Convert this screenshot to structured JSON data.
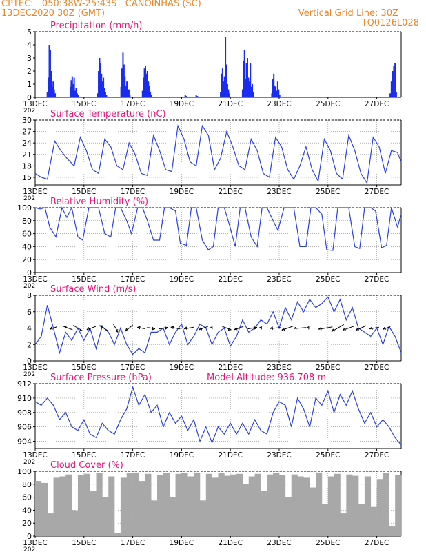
{
  "header": {
    "location": "CPTEC:   050:38W-25:43S   CANOINHAS (SC)",
    "run": "13DEC2020 30Z (GMT)",
    "grid_note": "Vertical Grid Line: 30Z",
    "model_id": "TQ0126L028"
  },
  "colors": {
    "header": "#e8872a",
    "title": "#e0177f",
    "line": "#2a3fe0",
    "bar": "#1a2cf0",
    "cloud": "#a8a8a8",
    "arrow": "#000000"
  },
  "x_axis": {
    "tick_labels": [
      "13DEC",
      "15DEC",
      "17DEC",
      "19DEC",
      "21DEC",
      "23DEC",
      "25DEC",
      "27DEC"
    ],
    "tick_days": [
      0,
      2,
      4,
      6,
      8,
      10,
      12,
      14
    ],
    "year_stub": "202",
    "range_days": [
      0,
      15
    ]
  },
  "chart_data": [
    {
      "type": "bar",
      "title": "Precipitation (mm/h)",
      "ylim": [
        0,
        5
      ],
      "yticks": [
        0,
        1,
        2,
        3,
        4,
        5
      ],
      "x_days": [
        0.5,
        0.54,
        0.58,
        0.62,
        0.66,
        0.7,
        0.74,
        0.78,
        0.82,
        1.44,
        1.48,
        1.52,
        1.56,
        1.6,
        1.64,
        1.68,
        1.72,
        1.76,
        2.56,
        2.6,
        2.64,
        2.68,
        2.72,
        2.76,
        2.8,
        2.84,
        2.88,
        2.92,
        3.52,
        3.56,
        3.6,
        3.64,
        3.68,
        3.72,
        3.76,
        3.8,
        3.84,
        3.88,
        4.4,
        4.44,
        4.48,
        4.52,
        4.56,
        4.6,
        4.64,
        4.68,
        4.72,
        4.76,
        6.15,
        6.19,
        6.6,
        6.65,
        7.6,
        7.64,
        7.68,
        7.72,
        7.76,
        7.8,
        7.84,
        7.88,
        7.92,
        7.96,
        8.5,
        8.54,
        8.58,
        8.62,
        8.66,
        8.7,
        8.74,
        8.78,
        8.82,
        8.86,
        8.9,
        8.94,
        9.7,
        9.74,
        9.78,
        9.82,
        9.86,
        9.9,
        9.94,
        9.98,
        10.02,
        14.55,
        14.6,
        14.65,
        14.7,
        14.75,
        14.8
      ],
      "values": [
        0.4,
        1.5,
        4.0,
        3.6,
        2.0,
        0.8,
        1.2,
        0.6,
        0.3,
        0.8,
        1.3,
        1.6,
        1.0,
        1.5,
        0.5,
        0.7,
        0.3,
        0.2,
        0.3,
        2.0,
        3.0,
        2.6,
        1.8,
        1.2,
        1.5,
        0.7,
        0.4,
        0.2,
        0.8,
        2.2,
        3.4,
        2.5,
        1.6,
        0.9,
        1.2,
        0.4,
        0.6,
        0.2,
        0.5,
        1.5,
        2.2,
        2.4,
        1.8,
        2.0,
        1.2,
        0.9,
        0.4,
        0.2,
        0.2,
        0.1,
        0.2,
        0.1,
        0.4,
        1.8,
        2.2,
        1.2,
        1.6,
        4.6,
        2.5,
        1.0,
        0.6,
        0.3,
        0.6,
        2.8,
        3.6,
        1.4,
        2.6,
        3.0,
        1.5,
        1.2,
        2.6,
        0.8,
        1.0,
        0.4,
        0.3,
        1.4,
        1.8,
        0.9,
        0.8,
        0.5,
        1.2,
        0.6,
        0.2,
        0.3,
        1.2,
        2.0,
        2.4,
        2.6,
        0.4
      ]
    },
    {
      "type": "line",
      "title": "Surface Temperature (nC)",
      "ylim": [
        13,
        30
      ],
      "yticks": [
        15,
        18,
        21,
        24,
        27,
        30
      ],
      "grid": true,
      "x_days": [
        0,
        0.25,
        0.5,
        0.8,
        1.05,
        1.3,
        1.6,
        1.85,
        2.1,
        2.35,
        2.6,
        2.85,
        3.1,
        3.35,
        3.6,
        3.85,
        4.1,
        4.35,
        4.6,
        4.85,
        5.1,
        5.35,
        5.6,
        5.85,
        6.1,
        6.35,
        6.6,
        6.85,
        7.1,
        7.35,
        7.6,
        7.85,
        8.1,
        8.35,
        8.6,
        8.85,
        9.1,
        9.35,
        9.6,
        9.85,
        10.1,
        10.35,
        10.6,
        10.85,
        11.1,
        11.35,
        11.6,
        11.85,
        12.1,
        12.35,
        12.6,
        12.85,
        13.1,
        13.35,
        13.6,
        13.85,
        14.1,
        14.35,
        14.6,
        14.85,
        15.0
      ],
      "values": [
        16,
        15,
        14.5,
        24.5,
        22,
        20,
        18,
        25.5,
        22,
        17,
        16,
        25,
        23,
        18,
        17,
        24,
        21,
        16,
        15.5,
        26,
        22,
        17,
        16.5,
        28.5,
        25,
        19,
        18,
        28.5,
        26,
        17,
        20,
        27,
        23,
        18,
        17,
        25,
        22,
        16,
        15,
        25.5,
        23,
        17,
        14.5,
        18,
        23,
        17,
        14,
        25,
        22,
        16,
        14.5,
        26,
        22,
        16,
        13.5,
        25.5,
        23,
        16,
        22,
        21.5,
        19
      ]
    },
    {
      "type": "line",
      "title": "Relative Humidity (%)",
      "ylim": [
        0,
        100
      ],
      "yticks": [
        0,
        20,
        40,
        60,
        80,
        100
      ],
      "grid": true,
      "x_days": [
        0,
        0.2,
        0.4,
        0.6,
        0.85,
        1.1,
        1.3,
        1.5,
        1.75,
        1.95,
        2.2,
        2.4,
        2.6,
        2.85,
        3.1,
        3.3,
        3.5,
        3.75,
        3.95,
        4.2,
        4.4,
        4.6,
        4.85,
        5.1,
        5.3,
        5.5,
        5.75,
        5.95,
        6.2,
        6.4,
        6.6,
        6.85,
        7.1,
        7.3,
        7.5,
        7.75,
        7.95,
        8.2,
        8.4,
        8.6,
        8.85,
        9.1,
        9.3,
        9.5,
        9.75,
        9.95,
        10.2,
        10.4,
        10.6,
        10.85,
        11.1,
        11.3,
        11.5,
        11.75,
        11.95,
        12.2,
        12.4,
        12.6,
        12.85,
        13.1,
        13.3,
        13.5,
        13.75,
        13.95,
        14.2,
        14.4,
        14.6,
        14.85,
        15.0
      ],
      "values": [
        100,
        98,
        100,
        70,
        55,
        100,
        85,
        100,
        55,
        50,
        100,
        100,
        100,
        60,
        55,
        100,
        100,
        80,
        60,
        100,
        100,
        80,
        50,
        50,
        100,
        100,
        95,
        45,
        42,
        100,
        100,
        50,
        35,
        40,
        100,
        100,
        75,
        40,
        100,
        100,
        55,
        40,
        100,
        100,
        80,
        65,
        100,
        100,
        100,
        40,
        40,
        100,
        100,
        90,
        35,
        34,
        100,
        100,
        100,
        40,
        37,
        100,
        100,
        95,
        38,
        42,
        100,
        70,
        90
      ]
    },
    {
      "type": "line",
      "title": "Surface Wind (m/s)",
      "ylim": [
        0,
        8
      ],
      "yticks": [
        0,
        2,
        4,
        6,
        8
      ],
      "grid": true,
      "x_days": [
        0,
        0.25,
        0.5,
        0.75,
        1.0,
        1.25,
        1.5,
        1.75,
        2.0,
        2.25,
        2.5,
        2.75,
        3.0,
        3.25,
        3.5,
        3.75,
        4.0,
        4.25,
        4.5,
        4.75,
        5.0,
        5.25,
        5.5,
        5.75,
        6.0,
        6.25,
        6.5,
        6.75,
        7.0,
        7.25,
        7.5,
        7.75,
        8.0,
        8.25,
        8.5,
        8.75,
        9.0,
        9.25,
        9.5,
        9.75,
        10.0,
        10.25,
        10.5,
        10.75,
        11.0,
        11.25,
        11.5,
        11.75,
        12.0,
        12.25,
        12.5,
        12.75,
        13.0,
        13.25,
        13.5,
        13.75,
        14.0,
        14.25,
        14.5,
        14.75,
        15.0
      ],
      "values": [
        2,
        3,
        6.8,
        4,
        1,
        3.5,
        2.5,
        4,
        2.5,
        4,
        1.5,
        4.2,
        3.5,
        2,
        4,
        2,
        0.8,
        1.5,
        1,
        3.5,
        3.5,
        4,
        2,
        3.5,
        4.5,
        2,
        3,
        4.5,
        4,
        2,
        3.5,
        4,
        1.8,
        3,
        5,
        3.5,
        4,
        5,
        4.5,
        6,
        4,
        6.5,
        5,
        7.2,
        6,
        7.5,
        6.5,
        7,
        7.8,
        6,
        7.5,
        5,
        6.5,
        4,
        3.5,
        3,
        4,
        2,
        4.2,
        3,
        1
      ]
    },
    {
      "type": "line",
      "title": "Surface Pressure (hPa)",
      "annotation": "Model Altitude: 936.708  m",
      "ylim": [
        903,
        912
      ],
      "yticks": [
        904,
        906,
        908,
        910,
        912
      ],
      "grid": true,
      "x_days": [
        0,
        0.25,
        0.5,
        0.75,
        1.0,
        1.25,
        1.5,
        1.75,
        2.0,
        2.25,
        2.5,
        2.75,
        3.0,
        3.25,
        3.5,
        3.75,
        4.0,
        4.25,
        4.5,
        4.75,
        5.0,
        5.25,
        5.5,
        5.75,
        6.0,
        6.25,
        6.5,
        6.75,
        7.0,
        7.25,
        7.5,
        7.75,
        8.0,
        8.25,
        8.5,
        8.75,
        9.0,
        9.25,
        9.5,
        9.75,
        10.0,
        10.25,
        10.5,
        10.75,
        11.0,
        11.25,
        11.5,
        11.75,
        12.0,
        12.25,
        12.5,
        12.75,
        13.0,
        13.25,
        13.5,
        13.75,
        14.0,
        14.25,
        14.5,
        14.75,
        15.0
      ],
      "values": [
        909.5,
        909,
        910,
        909,
        907,
        908,
        906,
        905.5,
        907,
        905,
        904.5,
        906.5,
        905.5,
        905,
        907,
        908.5,
        911.5,
        909,
        910.5,
        908,
        909,
        906,
        908,
        906.5,
        907.5,
        905.5,
        907,
        904,
        906,
        903.8,
        906,
        905,
        906.5,
        905,
        906.5,
        905,
        907,
        905.5,
        905,
        908,
        909.5,
        909,
        906,
        910,
        908.5,
        906,
        910,
        909,
        911,
        908,
        910.5,
        909,
        911,
        908.5,
        906.5,
        908,
        906,
        907,
        906,
        904.5,
        903.5
      ]
    },
    {
      "type": "area",
      "title": "Cloud Cover (%)",
      "ylim": [
        0,
        100
      ],
      "yticks": [
        0,
        20,
        40,
        60,
        80,
        100
      ],
      "grid": true,
      "x_days": [
        0,
        0.25,
        0.5,
        0.75,
        1.0,
        1.25,
        1.5,
        1.75,
        2.0,
        2.25,
        2.5,
        2.75,
        3.0,
        3.25,
        3.5,
        3.75,
        4.0,
        4.25,
        4.5,
        4.75,
        5.0,
        5.25,
        5.5,
        5.75,
        6.0,
        6.25,
        6.5,
        6.75,
        7.0,
        7.25,
        7.5,
        7.75,
        8.0,
        8.25,
        8.5,
        8.75,
        9.0,
        9.25,
        9.5,
        9.75,
        10.0,
        10.25,
        10.5,
        10.75,
        11.0,
        11.25,
        11.5,
        11.75,
        12.0,
        12.25,
        12.5,
        12.75,
        13.0,
        13.25,
        13.5,
        13.75,
        14.0,
        14.25,
        14.5,
        14.75,
        15.0
      ],
      "values": [
        85,
        82,
        35,
        90,
        92,
        95,
        40,
        94,
        96,
        70,
        97,
        60,
        92,
        5,
        90,
        97,
        98,
        85,
        96,
        55,
        94,
        97,
        60,
        96,
        97,
        92,
        98,
        55,
        96,
        90,
        97,
        93,
        95,
        96,
        80,
        92,
        96,
        70,
        95,
        97,
        94,
        60,
        95,
        92,
        90,
        75,
        98,
        50,
        92,
        96,
        35,
        95,
        93,
        50,
        92,
        45,
        88,
        97,
        15,
        94,
        93
      ]
    }
  ],
  "wind_vectors": {
    "x_days": [
      0.75,
      1.35,
      1.75,
      2.3,
      2.8,
      3.3,
      3.85,
      4.35,
      4.75,
      5.25,
      5.75,
      6.3,
      6.9,
      7.35,
      7.85,
      8.35,
      8.9,
      9.4,
      9.85,
      10.35,
      10.85,
      11.4,
      11.9,
      12.4,
      12.85,
      13.35,
      13.9,
      14.4
    ],
    "angles_deg": [
      200,
      160,
      330,
      200,
      150,
      300,
      220,
      170,
      350,
      10,
      170,
      190,
      200,
      180,
      340,
      200,
      10,
      180,
      185,
      200,
      185,
      180,
      190,
      210,
      200,
      205,
      190,
      200
    ],
    "speeds": [
      3,
      4,
      5,
      4,
      4,
      4,
      4,
      3,
      3,
      4,
      4,
      4,
      4,
      4,
      4,
      4,
      4,
      5,
      5,
      6,
      6,
      7,
      7,
      7,
      6,
      5,
      4,
      3
    ]
  }
}
